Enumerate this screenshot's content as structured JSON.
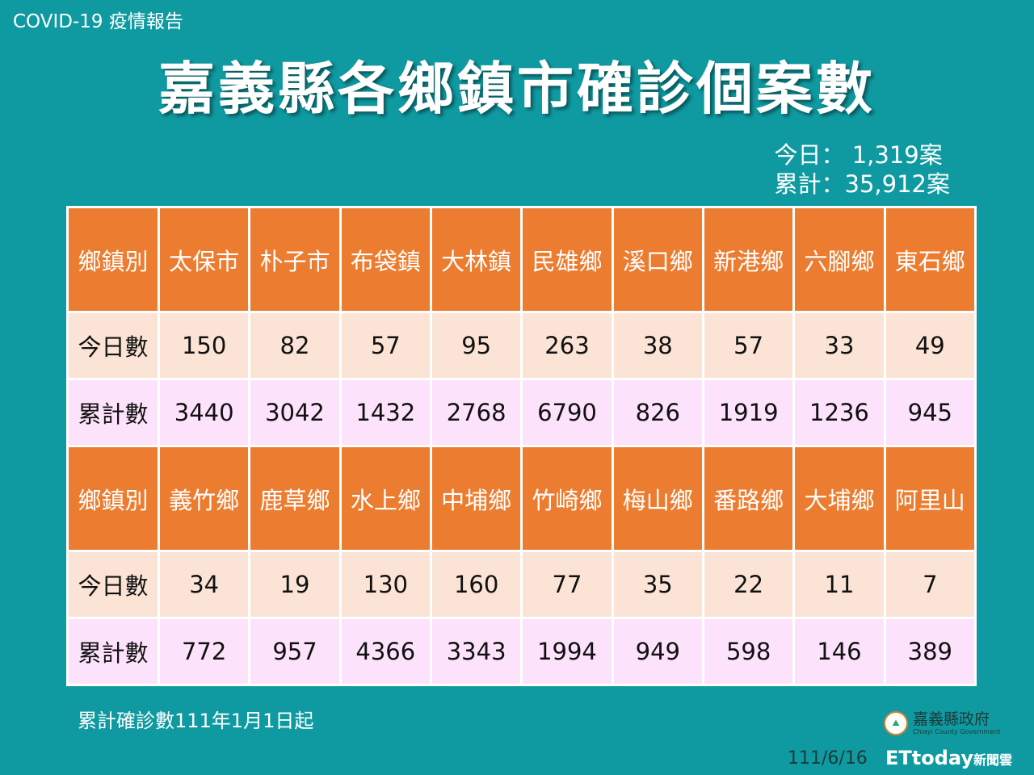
{
  "header": {
    "report_label": "COVID-19 疫情報告",
    "title": "嘉義縣各鄉鎮市確診個案數"
  },
  "stats": {
    "today": "今日：  1,319案",
    "total": "累計：35,912案"
  },
  "tables": [
    {
      "header": [
        "鄉鎮別",
        "太保市",
        "朴子市",
        "布袋鎮",
        "大林鎮",
        "民雄鄉",
        "溪口鄉",
        "新港鄉",
        "六腳鄉",
        "東石鄉"
      ],
      "today": [
        "今日數",
        "150",
        "82",
        "57",
        "95",
        "263",
        "38",
        "57",
        "33",
        "49"
      ],
      "cumulative": [
        "累計數",
        "3440",
        "3042",
        "1432",
        "2768",
        "6790",
        "826",
        "1919",
        "1236",
        "945"
      ]
    },
    {
      "header": [
        "鄉鎮別",
        "義竹鄉",
        "鹿草鄉",
        "水上鄉",
        "中埔鄉",
        "竹崎鄉",
        "梅山鄉",
        "番路鄉",
        "大埔鄉",
        "阿里山"
      ],
      "today": [
        "今日數",
        "34",
        "19",
        "130",
        "160",
        "77",
        "35",
        "22",
        "11",
        "7"
      ],
      "cumulative": [
        "累計數",
        "772",
        "957",
        "4366",
        "3343",
        "1994",
        "949",
        "598",
        "146",
        "389"
      ]
    }
  ],
  "footer": {
    "note": "累計確診數111年1月1日起",
    "org": "嘉義縣政府",
    "org_en": "Chiayi County Government",
    "date": "111/6/16",
    "watermark": "ETtoday",
    "watermark_sub": "新聞雲"
  }
}
